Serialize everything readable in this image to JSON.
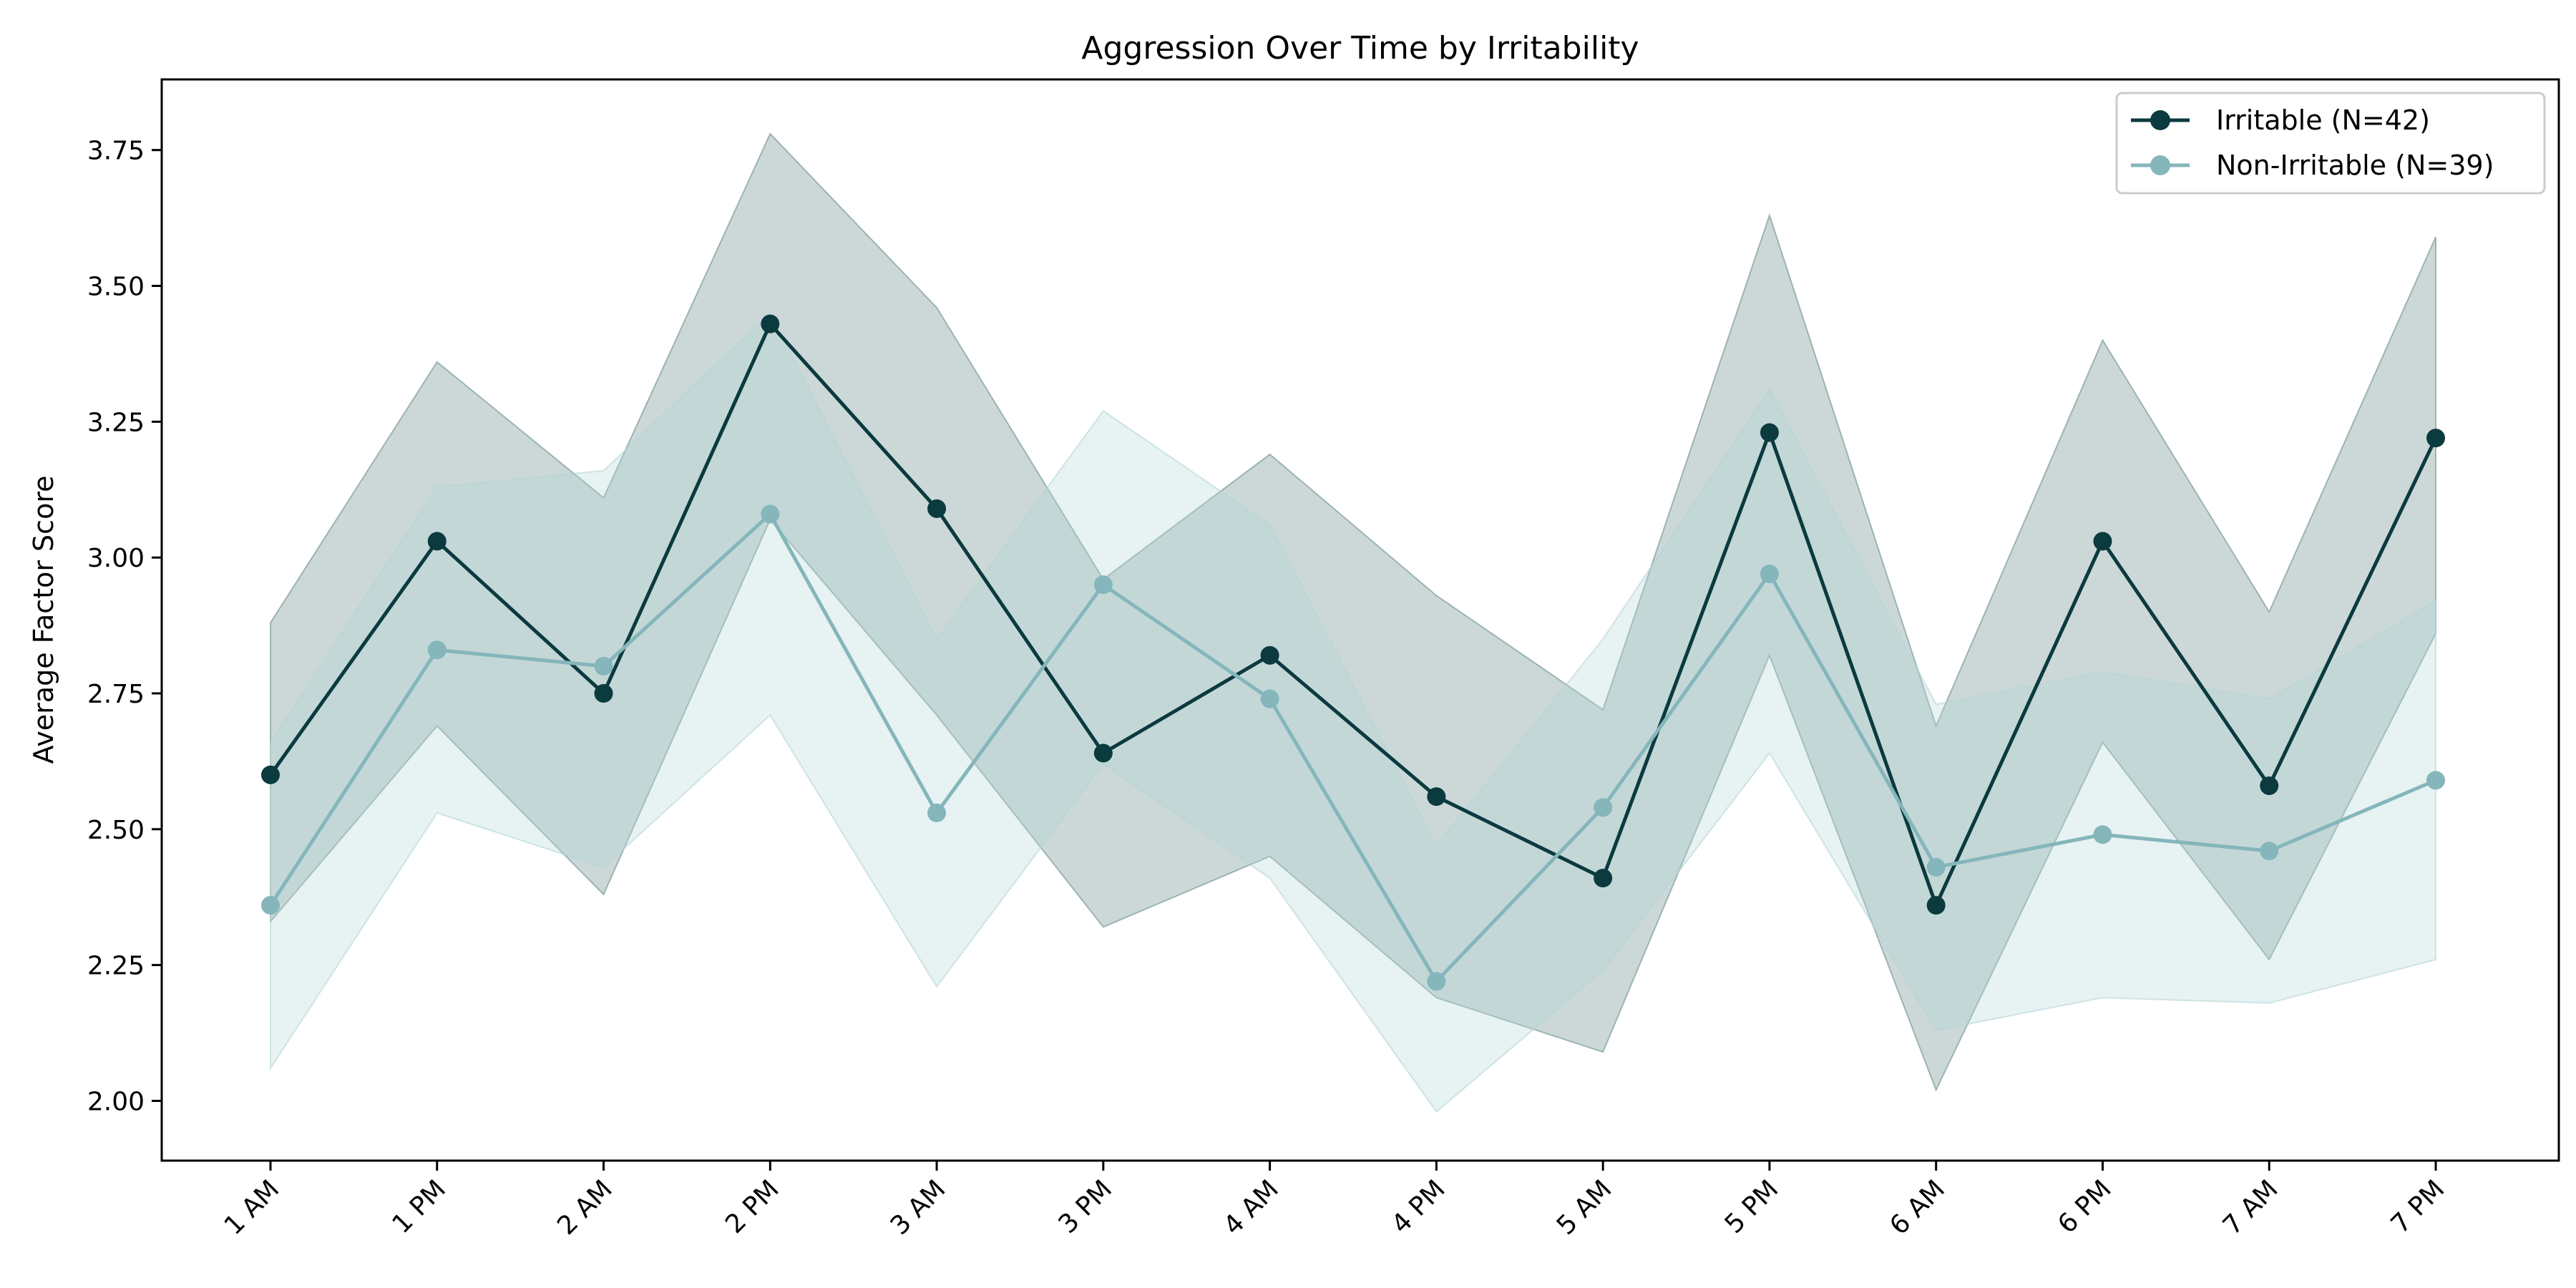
{
  "chart_data": {
    "type": "line",
    "title": "Aggression Over Time by Irritability",
    "xlabel": "",
    "ylabel": "Average Factor Score",
    "categories": [
      "1 AM",
      "1 PM",
      "2 AM",
      "2 PM",
      "3 AM",
      "3 PM",
      "4 AM",
      "4 PM",
      "5 AM",
      "5 PM",
      "6 AM",
      "6 PM",
      "7 AM",
      "7 PM"
    ],
    "ylim": [
      1.89,
      3.88
    ],
    "yticks": [
      "2.00",
      "2.25",
      "2.50",
      "2.75",
      "3.00",
      "3.25",
      "3.50",
      "3.75"
    ],
    "grid": false,
    "legend_position": "top-right",
    "series": [
      {
        "name": "Irritable (N=42)",
        "color": "#0b3a3f",
        "band_color": "#6e8f8f",
        "values": [
          2.6,
          3.03,
          2.75,
          3.43,
          3.09,
          2.64,
          2.82,
          2.56,
          2.41,
          3.23,
          2.36,
          3.03,
          2.58,
          3.22
        ],
        "upper": [
          2.88,
          3.36,
          3.11,
          3.78,
          3.46,
          2.96,
          3.19,
          2.93,
          2.72,
          3.63,
          2.69,
          3.4,
          2.9,
          3.59
        ],
        "lower": [
          2.33,
          2.69,
          2.38,
          3.07,
          2.71,
          2.32,
          2.45,
          2.19,
          2.09,
          2.82,
          2.02,
          2.66,
          2.26,
          2.86
        ]
      },
      {
        "name": "Non-Irritable (N=39)",
        "color": "#84b6bb",
        "band_color": "#b4d6d6",
        "values": [
          2.36,
          2.83,
          2.8,
          3.08,
          2.53,
          2.95,
          2.74,
          2.22,
          2.54,
          2.97,
          2.43,
          2.49,
          2.46,
          2.59
        ],
        "upper": [
          2.66,
          3.13,
          3.16,
          3.45,
          2.85,
          3.27,
          3.06,
          2.47,
          2.85,
          3.31,
          2.73,
          2.79,
          2.74,
          2.92
        ],
        "lower": [
          2.06,
          2.53,
          2.43,
          2.71,
          2.21,
          2.62,
          2.41,
          1.98,
          2.24,
          2.64,
          2.13,
          2.19,
          2.18,
          2.26
        ]
      }
    ]
  }
}
